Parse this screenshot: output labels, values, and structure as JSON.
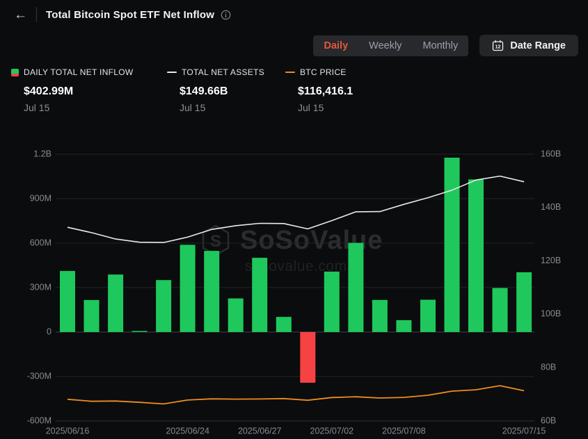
{
  "header": {
    "back_icon": "←",
    "title": "Total Bitcoin Spot ETF Net Inflow"
  },
  "controls": {
    "tabs": [
      {
        "label": "Daily",
        "active": true
      },
      {
        "label": "Weekly",
        "active": false
      },
      {
        "label": "Monthly",
        "active": false
      }
    ],
    "date_range_label": "Date Range"
  },
  "legend": [
    {
      "label": "DAILY TOTAL NET INFLOW",
      "value": "$402.99M",
      "date": "Jul 15",
      "swatch": "green-red-bar"
    },
    {
      "label": "TOTAL NET ASSETS",
      "value": "$149.66B",
      "date": "Jul 15",
      "swatch": "white-line"
    },
    {
      "label": "BTC PRICE",
      "value": "$116,416.1",
      "date": "Jul 15",
      "swatch": "orange-line"
    }
  ],
  "colors": {
    "background": "#0b0c0e",
    "accent_tab": "#e2583a",
    "bar_positive": "#1fc85c",
    "bar_negative": "#f64242",
    "line_assets": "#e8eaec",
    "line_btc": "#ee8d1e",
    "axis_text": "#878b91",
    "grid": "#202327",
    "zero_line": "#3a3f45",
    "bottom_line": "#2e3338"
  },
  "chart_data": {
    "type": "bar",
    "title": "Total Bitcoin Spot ETF Net Inflow",
    "x": [
      "2025/06/16",
      "2025/06/17",
      "2025/06/18",
      "2025/06/20",
      "2025/06/23",
      "2025/06/24",
      "2025/06/25",
      "2025/06/26",
      "2025/06/27",
      "2025/06/30",
      "2025/07/01",
      "2025/07/02",
      "2025/07/03",
      "2025/07/07",
      "2025/07/08",
      "2025/07/09",
      "2025/07/10",
      "2025/07/11",
      "2025/07/14",
      "2025/07/15"
    ],
    "x_tick_labels": [
      "2025/06/16",
      "2025/06/24",
      "2025/06/27",
      "2025/07/02",
      "2025/07/08",
      "2025/07/15"
    ],
    "x_tick_indices": [
      0,
      5,
      8,
      11,
      14,
      19
    ],
    "series": [
      {
        "name": "Daily Total Net Inflow",
        "type": "bar",
        "axis": "left",
        "unit": "USD millions",
        "values": [
          412.2,
          216.3,
          388.3,
          6.4,
          350.6,
          588.6,
          547.7,
          226.7,
          501.2,
          102.1,
          -342.2,
          407.8,
          601.8,
          216.6,
          80.1,
          218.0,
          1176.5,
          1030.0,
          297.4,
          402.99
        ]
      },
      {
        "name": "Total Net Assets",
        "type": "line",
        "axis": "right",
        "unit": "USD billions",
        "values": [
          132.6,
          130.6,
          128.2,
          127.0,
          126.9,
          128.9,
          131.8,
          133.2,
          134.1,
          134.0,
          132.0,
          135.1,
          138.4,
          138.5,
          141.2,
          143.7,
          146.5,
          150.3,
          151.8,
          149.66
        ]
      },
      {
        "name": "BTC Price",
        "type": "line",
        "axis": "hidden",
        "unit": "USD",
        "values": [
          106800,
          104600,
          104900,
          103400,
          101600,
          106000,
          107300,
          107000,
          107100,
          107600,
          105700,
          108800,
          109600,
          108200,
          108900,
          111300,
          115900,
          117500,
          122100,
          116416.1
        ]
      }
    ],
    "left_axis": {
      "ticks": [
        "1.2B",
        "900M",
        "600M",
        "300M",
        "0",
        "-300M",
        "-600M"
      ],
      "min": -600,
      "max": 1200,
      "unit": "M"
    },
    "right_axis": {
      "ticks": [
        "160B",
        "140B",
        "120B",
        "100B",
        "80B",
        "60B"
      ],
      "min": 60,
      "max": 160,
      "unit": "B"
    },
    "btc_axis": {
      "min": 95000,
      "max": 130000
    },
    "grid": true,
    "legend_position": "top-left",
    "watermark": {
      "brand": "SoSoValue",
      "domain": "sosovalue.com"
    }
  }
}
